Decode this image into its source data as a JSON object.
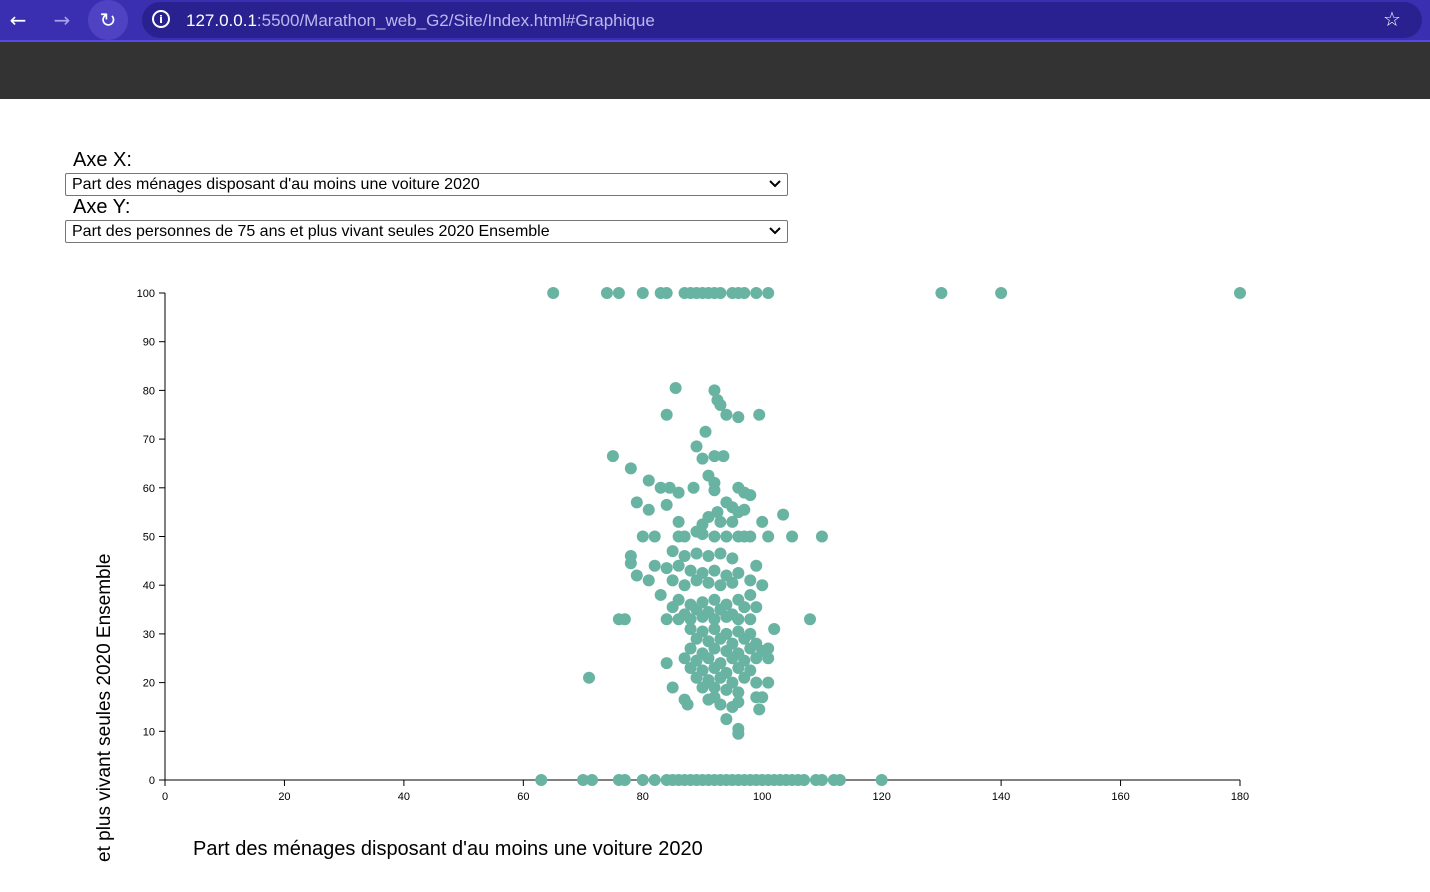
{
  "browser": {
    "url_host": "127.0.0.1",
    "url_path": ":5500/Marathon_web_G2/Site/Index.html#Graphique",
    "icons": [
      "back-arrow-icon",
      "forward-arrow-icon",
      "reload-icon",
      "info-icon",
      "star-icon"
    ]
  },
  "controls": {
    "x_label": "Axe X:",
    "x_selected": "Part des ménages disposant d'au moins une voiture 2020",
    "y_label": "Axe Y:",
    "y_selected": "Part des personnes de 75 ans et plus vivant seules 2020 Ensemble"
  },
  "colors": {
    "accent": "#69b3a2",
    "browser_bar": "#3a2fb0",
    "site_header": "#333333"
  },
  "chart_data": {
    "type": "scatter",
    "title": "",
    "xlabel": "Part des ménages disposant d'au moins une voiture 2020",
    "ylabel": "et plus vivant seules 2020 Ensemble",
    "xlim": [
      0,
      180
    ],
    "ylim": [
      0,
      100
    ],
    "xticks": [
      "0",
      "20",
      "40",
      "60",
      "80",
      "100",
      "120",
      "140",
      "160",
      "180"
    ],
    "yticks": [
      "0",
      "10",
      "20",
      "30",
      "40",
      "50",
      "60",
      "70",
      "80",
      "90",
      "100"
    ],
    "grid": false,
    "color": "#69b3a2",
    "points": [
      [
        65,
        100
      ],
      [
        74,
        100
      ],
      [
        76,
        100
      ],
      [
        80,
        100
      ],
      [
        83,
        100
      ],
      [
        84,
        100
      ],
      [
        87,
        100
      ],
      [
        88,
        100
      ],
      [
        89,
        100
      ],
      [
        90,
        100
      ],
      [
        91,
        100
      ],
      [
        92,
        100
      ],
      [
        93,
        100
      ],
      [
        95,
        100
      ],
      [
        96,
        100
      ],
      [
        97,
        100
      ],
      [
        99,
        100
      ],
      [
        101,
        100
      ],
      [
        130,
        100
      ],
      [
        140,
        100
      ],
      [
        180,
        100
      ],
      [
        63,
        0
      ],
      [
        70,
        0
      ],
      [
        71.5,
        0
      ],
      [
        76,
        0
      ],
      [
        77,
        0
      ],
      [
        80,
        0
      ],
      [
        82,
        0
      ],
      [
        84,
        0
      ],
      [
        85,
        0
      ],
      [
        86,
        0
      ],
      [
        87,
        0
      ],
      [
        88,
        0
      ],
      [
        89,
        0
      ],
      [
        90,
        0
      ],
      [
        91,
        0
      ],
      [
        92,
        0
      ],
      [
        93,
        0
      ],
      [
        94,
        0
      ],
      [
        95,
        0
      ],
      [
        96,
        0
      ],
      [
        97,
        0
      ],
      [
        98,
        0
      ],
      [
        99,
        0
      ],
      [
        100,
        0
      ],
      [
        101,
        0
      ],
      [
        102,
        0
      ],
      [
        103,
        0
      ],
      [
        104,
        0
      ],
      [
        105,
        0
      ],
      [
        106,
        0
      ],
      [
        107,
        0
      ],
      [
        109,
        0
      ],
      [
        110,
        0
      ],
      [
        112,
        0
      ],
      [
        113,
        0
      ],
      [
        120,
        0
      ],
      [
        85.5,
        80.5
      ],
      [
        92,
        80
      ],
      [
        92.5,
        78
      ],
      [
        93,
        77
      ],
      [
        84,
        75
      ],
      [
        94,
        75
      ],
      [
        96,
        74.5
      ],
      [
        99.5,
        75
      ],
      [
        90.5,
        71.5
      ],
      [
        89,
        68.5
      ],
      [
        75,
        66.5
      ],
      [
        90,
        66
      ],
      [
        92,
        66.5
      ],
      [
        93.5,
        66.5
      ],
      [
        78,
        64
      ],
      [
        91,
        62.5
      ],
      [
        92,
        61
      ],
      [
        81,
        61.5
      ],
      [
        83,
        60
      ],
      [
        84.5,
        60
      ],
      [
        86,
        59
      ],
      [
        88.5,
        60
      ],
      [
        92,
        59.5
      ],
      [
        96,
        60
      ],
      [
        97,
        59
      ],
      [
        98,
        58.5
      ],
      [
        79,
        57
      ],
      [
        94,
        57
      ],
      [
        95,
        56
      ],
      [
        81,
        55.5
      ],
      [
        84,
        56.5
      ],
      [
        92.5,
        55
      ],
      [
        96,
        55
      ],
      [
        97,
        55.5
      ],
      [
        91,
        54
      ],
      [
        103.5,
        54.5
      ],
      [
        86,
        53
      ],
      [
        90,
        52.5
      ],
      [
        93,
        53
      ],
      [
        95,
        53
      ],
      [
        100,
        53
      ],
      [
        80,
        50
      ],
      [
        82,
        50
      ],
      [
        86,
        50
      ],
      [
        87,
        50
      ],
      [
        89,
        51
      ],
      [
        90,
        50.5
      ],
      [
        92,
        50
      ],
      [
        94,
        50
      ],
      [
        96,
        50
      ],
      [
        97,
        50
      ],
      [
        98,
        50
      ],
      [
        101,
        50
      ],
      [
        105,
        50
      ],
      [
        110,
        50
      ],
      [
        78,
        46
      ],
      [
        85,
        47
      ],
      [
        87,
        46
      ],
      [
        89,
        46.5
      ],
      [
        91,
        46
      ],
      [
        93,
        46.5
      ],
      [
        95,
        45.5
      ],
      [
        99,
        44
      ],
      [
        78,
        44.5
      ],
      [
        82,
        44
      ],
      [
        84,
        43.5
      ],
      [
        86,
        44
      ],
      [
        88,
        43
      ],
      [
        90,
        42.5
      ],
      [
        92,
        43
      ],
      [
        94,
        42
      ],
      [
        96,
        42.5
      ],
      [
        79,
        42
      ],
      [
        81,
        41
      ],
      [
        85,
        41
      ],
      [
        87,
        40
      ],
      [
        89,
        41
      ],
      [
        91,
        40.5
      ],
      [
        93,
        40
      ],
      [
        95,
        40.5
      ],
      [
        98,
        41
      ],
      [
        100,
        40
      ],
      [
        83,
        38
      ],
      [
        86,
        37
      ],
      [
        88,
        36
      ],
      [
        90,
        36.5
      ],
      [
        92,
        37
      ],
      [
        94,
        36
      ],
      [
        96,
        37
      ],
      [
        98,
        38
      ],
      [
        85,
        35.5
      ],
      [
        87,
        34
      ],
      [
        89,
        35
      ],
      [
        91,
        34.5
      ],
      [
        93,
        35
      ],
      [
        95,
        34
      ],
      [
        97,
        35.5
      ],
      [
        99,
        35.5
      ],
      [
        76,
        33
      ],
      [
        77,
        33
      ],
      [
        84,
        33
      ],
      [
        86,
        33
      ],
      [
        88,
        33
      ],
      [
        90,
        33.5
      ],
      [
        92,
        33
      ],
      [
        94,
        33.5
      ],
      [
        96,
        33
      ],
      [
        98,
        33
      ],
      [
        108,
        33
      ],
      [
        88,
        31
      ],
      [
        90,
        30.5
      ],
      [
        92,
        31
      ],
      [
        94,
        30
      ],
      [
        96,
        30.5
      ],
      [
        98,
        30
      ],
      [
        102,
        31
      ],
      [
        89,
        29
      ],
      [
        91,
        28.5
      ],
      [
        93,
        29
      ],
      [
        95,
        28
      ],
      [
        97,
        29
      ],
      [
        99,
        28
      ],
      [
        88,
        27
      ],
      [
        90,
        26
      ],
      [
        92,
        27
      ],
      [
        94,
        26.5
      ],
      [
        96,
        26
      ],
      [
        98,
        27
      ],
      [
        100,
        26.5
      ],
      [
        101,
        27
      ],
      [
        87,
        25
      ],
      [
        89,
        24.5
      ],
      [
        91,
        25
      ],
      [
        93,
        24
      ],
      [
        95,
        25
      ],
      [
        97,
        24.5
      ],
      [
        99,
        25
      ],
      [
        101,
        25
      ],
      [
        84,
        24
      ],
      [
        88,
        23
      ],
      [
        90,
        22.5
      ],
      [
        92,
        23
      ],
      [
        94,
        22
      ],
      [
        96,
        23
      ],
      [
        98,
        22.5
      ],
      [
        71,
        21
      ],
      [
        89,
        21
      ],
      [
        91,
        20.5
      ],
      [
        93,
        21
      ],
      [
        95,
        20
      ],
      [
        97,
        21
      ],
      [
        99,
        20
      ],
      [
        101,
        20
      ],
      [
        85,
        19
      ],
      [
        90,
        19
      ],
      [
        92,
        19
      ],
      [
        94,
        18.5
      ],
      [
        96,
        18
      ],
      [
        99,
        17
      ],
      [
        100,
        17
      ],
      [
        87,
        16.5
      ],
      [
        91,
        16.5
      ],
      [
        92,
        17
      ],
      [
        93,
        15.5
      ],
      [
        95,
        15
      ],
      [
        96,
        16
      ],
      [
        87.5,
        15.5
      ],
      [
        99.5,
        14.5
      ],
      [
        94,
        12.5
      ],
      [
        96,
        10.5
      ],
      [
        96,
        9.5
      ]
    ]
  }
}
